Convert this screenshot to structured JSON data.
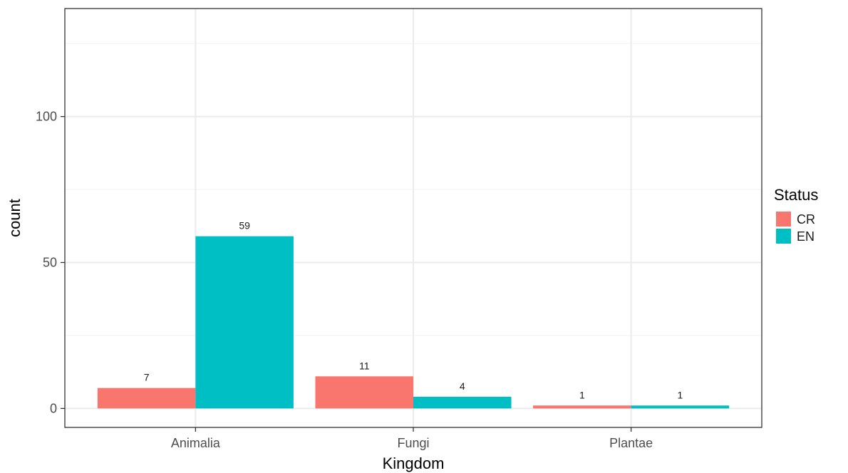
{
  "chart_data": {
    "type": "bar",
    "categories": [
      "Animalia",
      "Fungi",
      "Plantae"
    ],
    "series": [
      {
        "name": "CR",
        "values": [
          7,
          11,
          1
        ],
        "color": "#F8766D"
      },
      {
        "name": "EN",
        "values": [
          59,
          4,
          1
        ],
        "color": "#00BFC4"
      }
    ],
    "xlabel": "Kingdom",
    "ylabel": "count",
    "ylim": [
      -6.5,
      137
    ],
    "yticks": [
      0,
      50,
      100
    ],
    "y_minor_ticks": [
      25,
      75,
      125
    ],
    "legend": {
      "title": "Status",
      "placement": "right"
    },
    "grid": true
  }
}
